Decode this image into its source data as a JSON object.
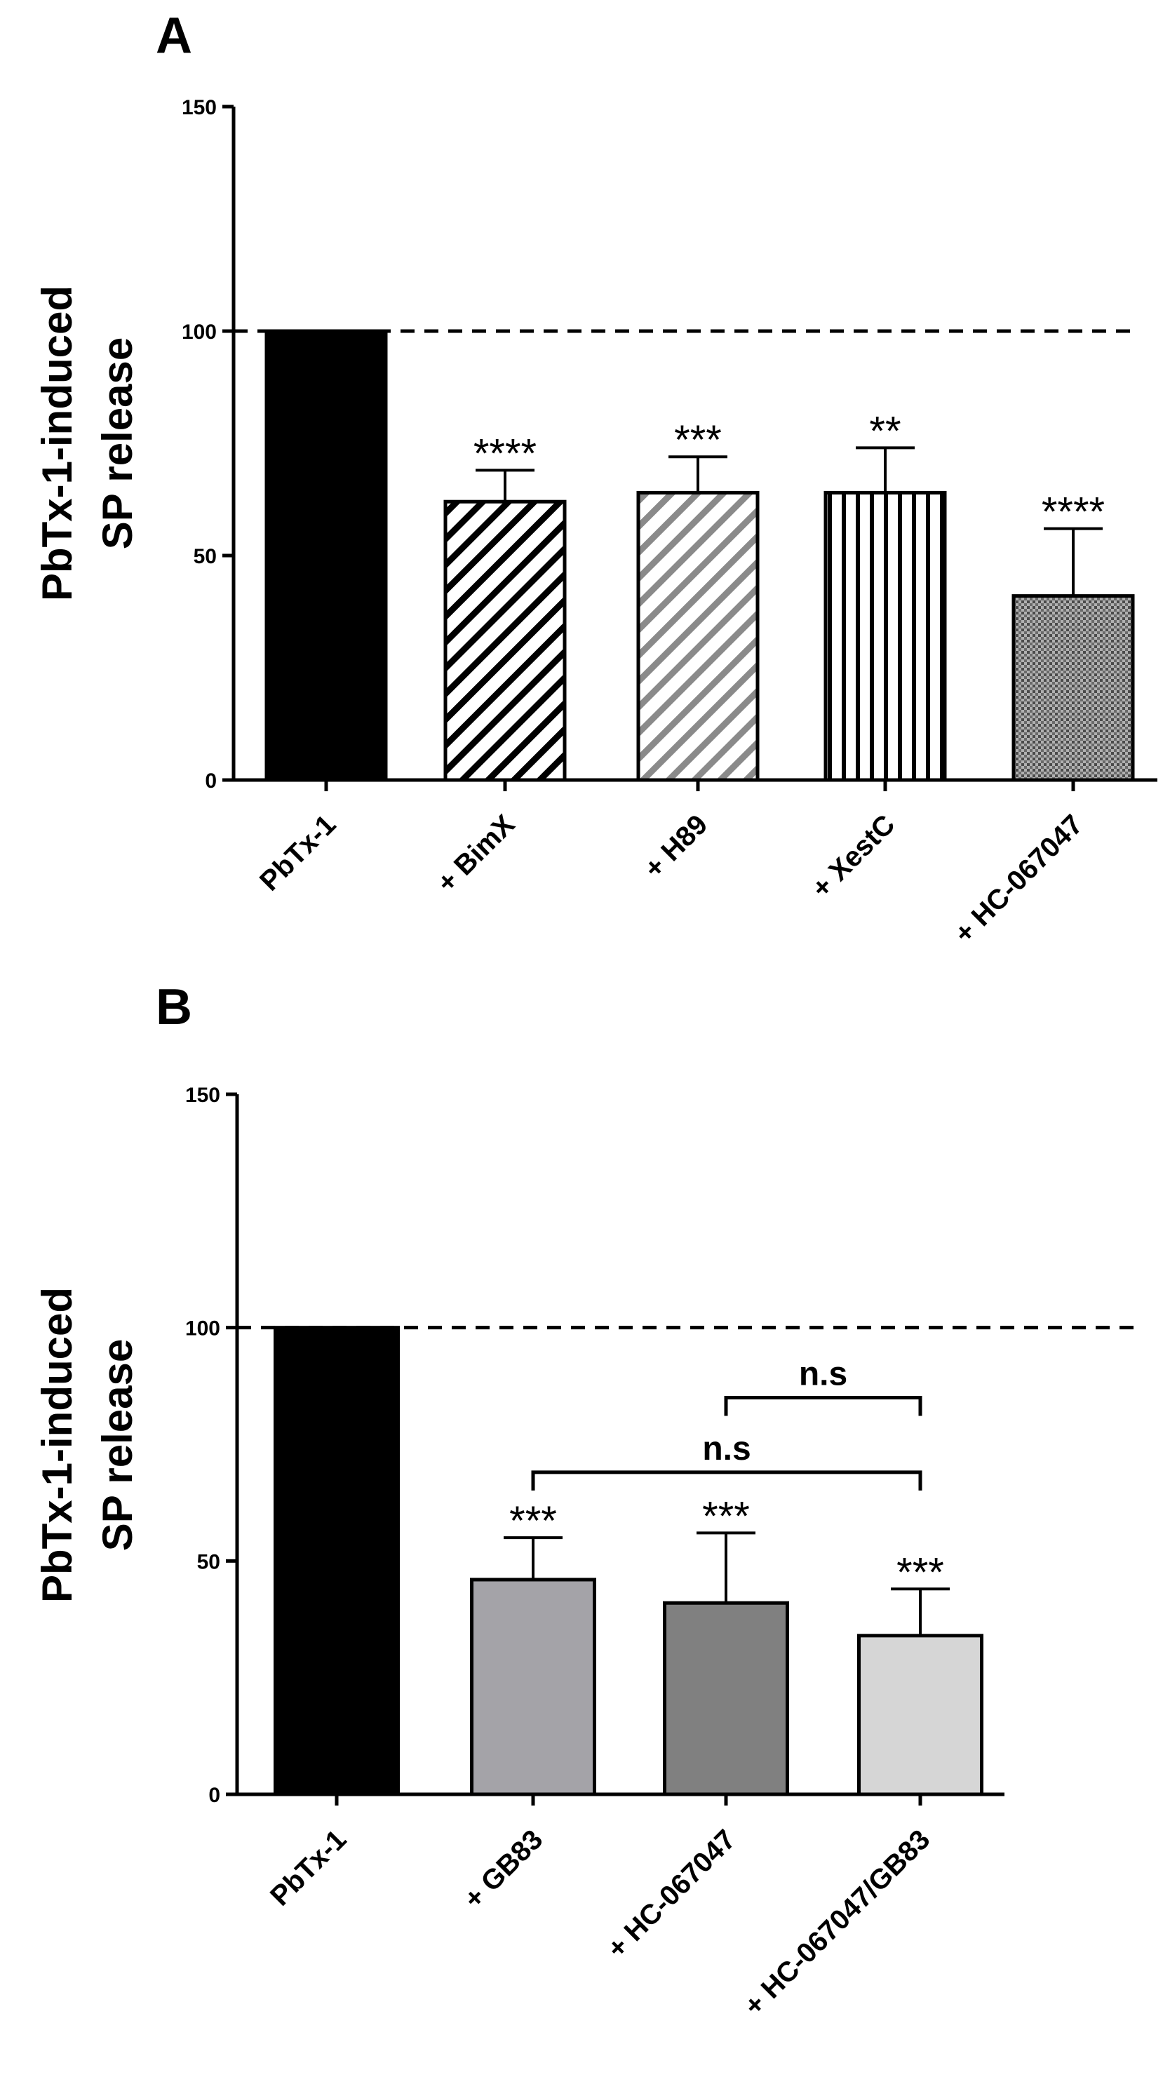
{
  "chart_data": [
    {
      "type": "bar",
      "panel": "A",
      "ylabel": [
        "PbTx-1-induced",
        "SP release"
      ],
      "ylim": [
        0,
        150
      ],
      "yticks": [
        0,
        50,
        100,
        150
      ],
      "reference_line": 100,
      "categories": [
        "PbTx-1",
        "+ BimX",
        "+ H89",
        "+ XestC",
        "+ HC-067047"
      ],
      "values": [
        100,
        62,
        64,
        64,
        41
      ],
      "errors": [
        0,
        7,
        8,
        10,
        15
      ],
      "significance": [
        "",
        "****",
        "***",
        "**",
        "****"
      ],
      "fill_styles": [
        "solid-black",
        "hatch-dark",
        "hatch-gray",
        "vertical-lines",
        "dotted-gray"
      ],
      "brackets": []
    },
    {
      "type": "bar",
      "panel": "B",
      "ylabel": [
        "PbTx-1-induced",
        "SP release"
      ],
      "ylim": [
        0,
        150
      ],
      "yticks": [
        0,
        50,
        100,
        150
      ],
      "reference_line": 100,
      "categories": [
        "PbTx-1",
        "+ GB83",
        "+ HC-067047",
        "+ HC-067047/GB83"
      ],
      "values": [
        100,
        46,
        41,
        34
      ],
      "errors": [
        0,
        9,
        15,
        10
      ],
      "significance": [
        "",
        "***",
        "***",
        "***"
      ],
      "fill_colors": [
        "#000000",
        "#a4a3a8",
        "#808080",
        "#d6d6d6"
      ],
      "brackets": [
        {
          "from": 1,
          "to": 3,
          "label": "n.s",
          "level": 69
        },
        {
          "from": 2,
          "to": 3,
          "label": "n.s",
          "level": 85
        }
      ]
    }
  ]
}
